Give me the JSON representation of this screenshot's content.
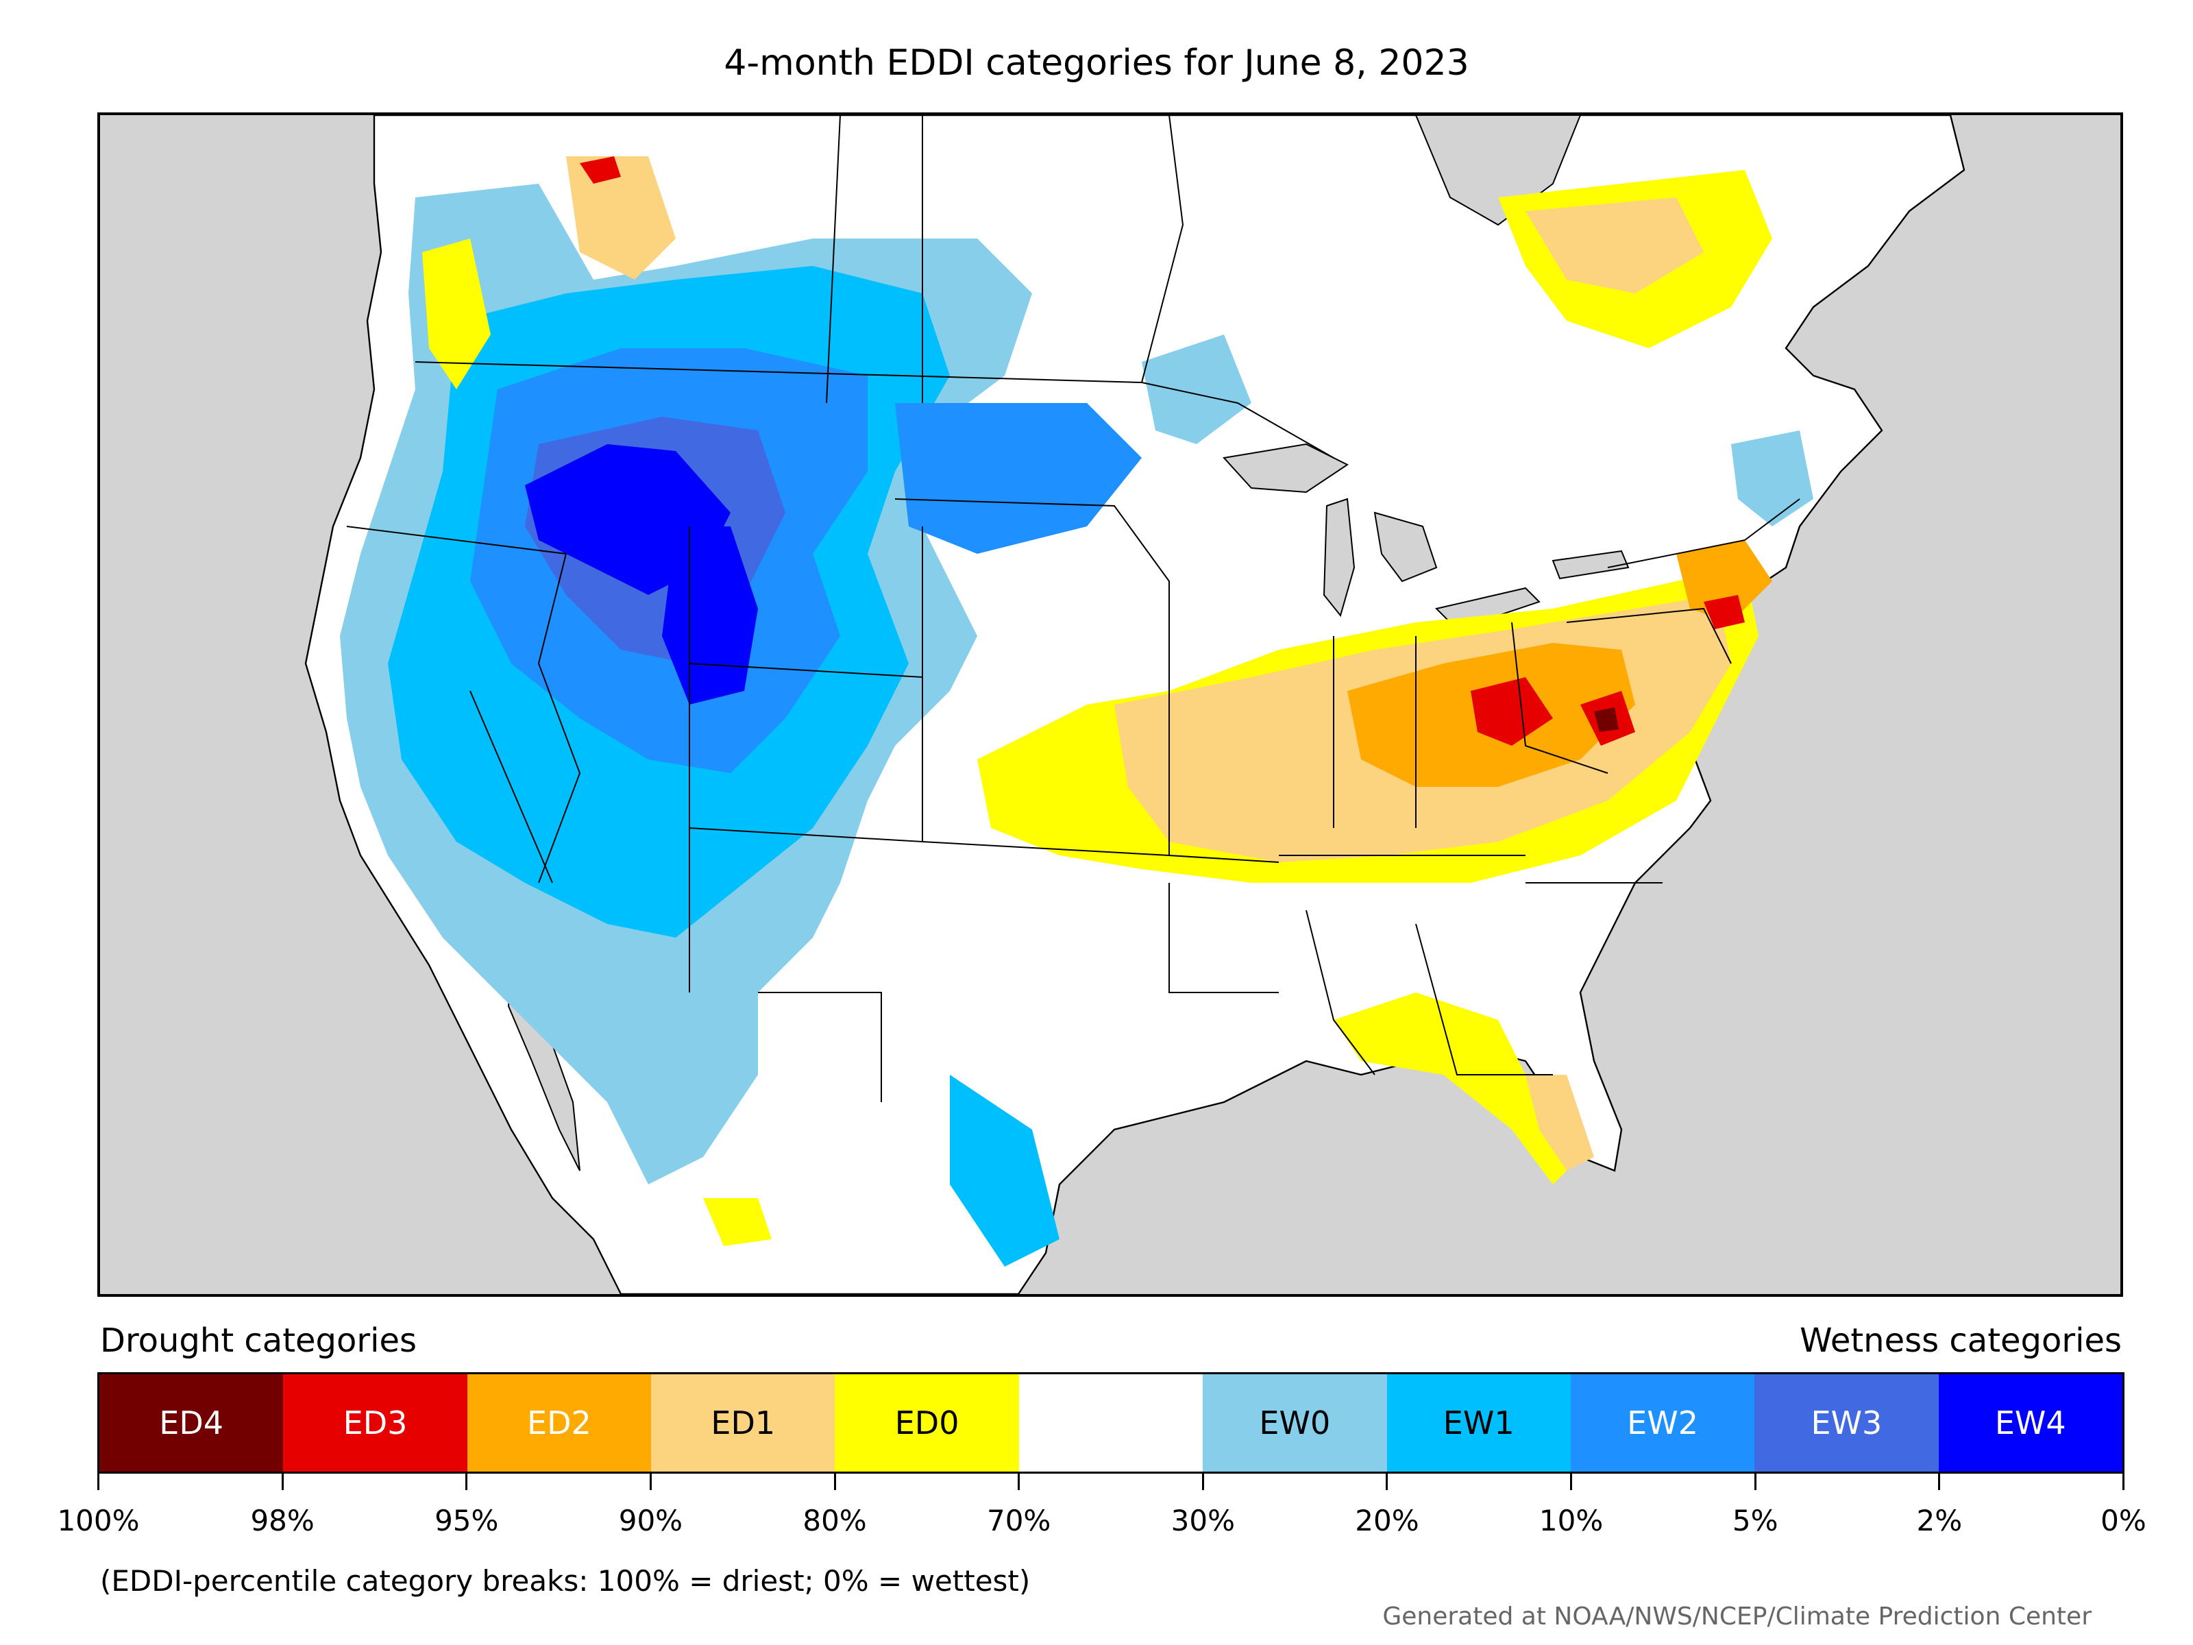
{
  "title": "4-month EDDI categories for June 8, 2023",
  "legend": {
    "drought_title": "Drought categories",
    "wetness_title": "Wetness categories",
    "categories": [
      {
        "label": "ED4",
        "color": "#730000",
        "text_color": "#ffffff"
      },
      {
        "label": "ED3",
        "color": "#e60000",
        "text_color": "#ffffff"
      },
      {
        "label": "ED2",
        "color": "#ffaa00",
        "text_color": "#ffffff"
      },
      {
        "label": "ED1",
        "color": "#fcd37f",
        "text_color": "#000000"
      },
      {
        "label": "ED0",
        "color": "#ffff00",
        "text_color": "#000000"
      },
      {
        "label": "",
        "color": "#ffffff",
        "text_color": "#000000"
      },
      {
        "label": "EW0",
        "color": "#87ceeb",
        "text_color": "#000000"
      },
      {
        "label": "EW1",
        "color": "#00bfff",
        "text_color": "#000000"
      },
      {
        "label": "EW2",
        "color": "#1e90ff",
        "text_color": "#ffffff"
      },
      {
        "label": "EW3",
        "color": "#4169e1",
        "text_color": "#ffffff"
      },
      {
        "label": "EW4",
        "color": "#0000ff",
        "text_color": "#ffffff"
      }
    ],
    "breaks": [
      "100%",
      "98%",
      "95%",
      "90%",
      "80%",
      "70%",
      "30%",
      "20%",
      "10%",
      "5%",
      "2%",
      "0%"
    ]
  },
  "note": "(EDDI-percentile category breaks: 100% = driest; 0% = wettest)",
  "credit": "Generated at NOAA/NWS/NCEP/Climate Prediction Center",
  "map": {
    "ocean_color": "#d3d3d3",
    "land_color": "#ffffff"
  }
}
